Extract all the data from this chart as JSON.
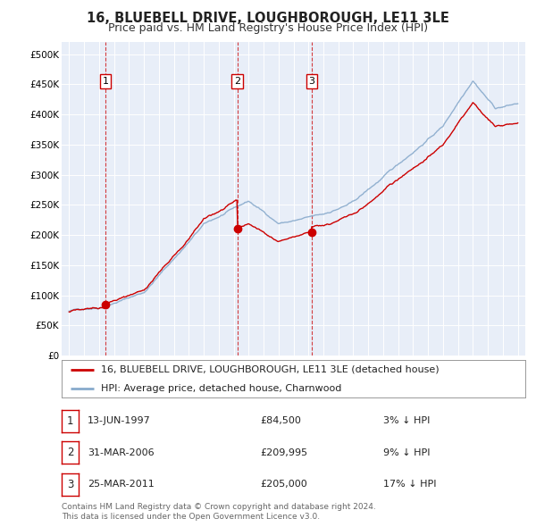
{
  "title": "16, BLUEBELL DRIVE, LOUGHBOROUGH, LE11 3LE",
  "subtitle": "Price paid vs. HM Land Registry's House Price Index (HPI)",
  "legend_house": "16, BLUEBELL DRIVE, LOUGHBOROUGH, LE11 3LE (detached house)",
  "legend_hpi": "HPI: Average price, detached house, Charnwood",
  "house_color": "#cc0000",
  "hpi_color": "#88aacc",
  "background_color": "#e8eef8",
  "purchases": [
    {
      "label": "1",
      "date_num": 1997.44,
      "price": 84500,
      "note": "3% ↓ HPI",
      "date_str": "13-JUN-1997"
    },
    {
      "label": "2",
      "date_num": 2006.24,
      "price": 209995,
      "note": "9% ↓ HPI",
      "date_str": "31-MAR-2006"
    },
    {
      "label": "3",
      "date_num": 2011.22,
      "price": 205000,
      "note": "17% ↓ HPI",
      "date_str": "25-MAR-2011"
    }
  ],
  "footer": "Contains HM Land Registry data © Crown copyright and database right 2024.\nThis data is licensed under the Open Government Licence v3.0.",
  "ylim": [
    0,
    520000
  ],
  "xlim": [
    1994.5,
    2025.5
  ],
  "yticks": [
    0,
    50000,
    100000,
    150000,
    200000,
    250000,
    300000,
    350000,
    400000,
    450000,
    500000
  ],
  "xticks": [
    1995,
    1996,
    1997,
    1998,
    1999,
    2000,
    2001,
    2002,
    2003,
    2004,
    2005,
    2006,
    2007,
    2008,
    2009,
    2010,
    2011,
    2012,
    2013,
    2014,
    2015,
    2016,
    2017,
    2018,
    2019,
    2020,
    2021,
    2022,
    2023,
    2024,
    2025
  ]
}
